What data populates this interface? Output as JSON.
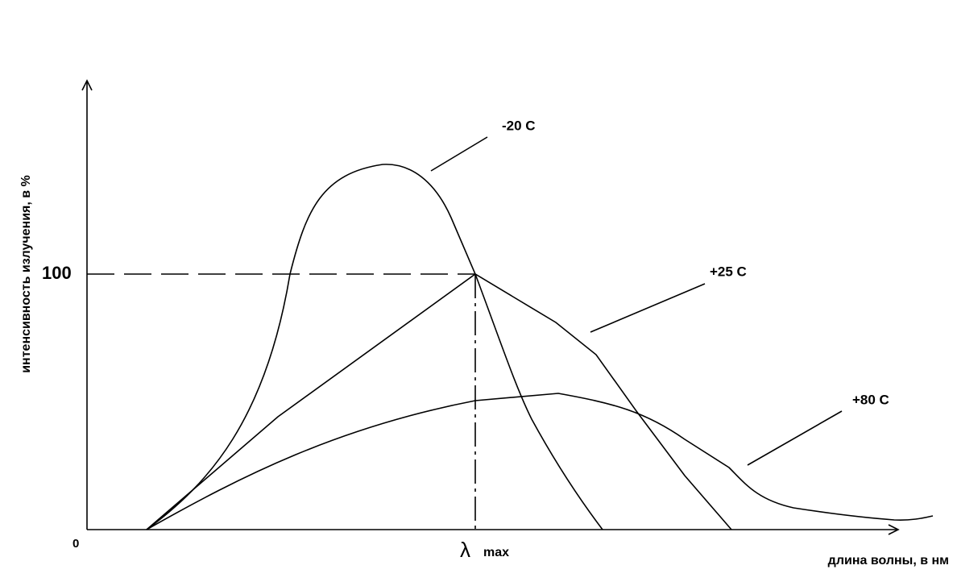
{
  "curves": [
    {
      "label": "-20 C"
    },
    {
      "label": "+25 C"
    },
    {
      "label": "+80 C"
    }
  ],
  "axes": {
    "y_label": "интенсивность излучения, в %",
    "x_label": "длина волны, в нм",
    "y_mark": "100",
    "origin": "0",
    "lambda": "λ",
    "lambda_sub": "max"
  }
}
